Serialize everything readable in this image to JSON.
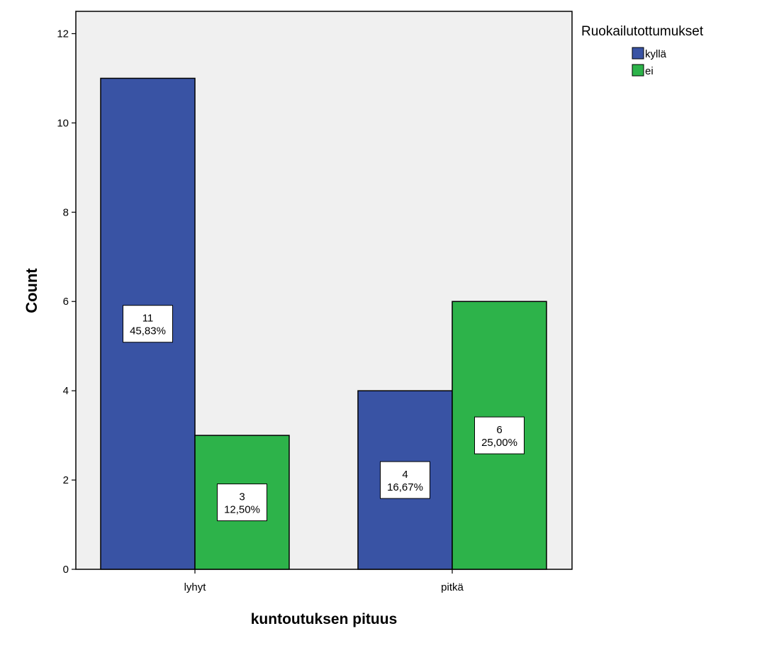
{
  "chart_data": {
    "type": "bar",
    "title": "",
    "xlabel": "kuntoutuksen pituus",
    "ylabel": "Count",
    "categories": [
      "lyhyt",
      "pitkä"
    ],
    "ylim": [
      0,
      12.5
    ],
    "yticks": [
      0,
      2,
      4,
      6,
      8,
      10,
      12
    ],
    "grid": false,
    "legend": {
      "title": "Ruokailutottumukset",
      "placement": "top-right, outside plot"
    },
    "series": [
      {
        "name": "kyllä",
        "color": "#3953a4",
        "values": [
          11,
          4
        ],
        "percent_labels": [
          "45,83%",
          "16,67%"
        ]
      },
      {
        "name": "ei",
        "color": "#2db34a",
        "values": [
          3,
          6
        ],
        "percent_labels": [
          "12,50%",
          "25,00%"
        ]
      }
    ],
    "plot_background": "#f0f0f0"
  }
}
